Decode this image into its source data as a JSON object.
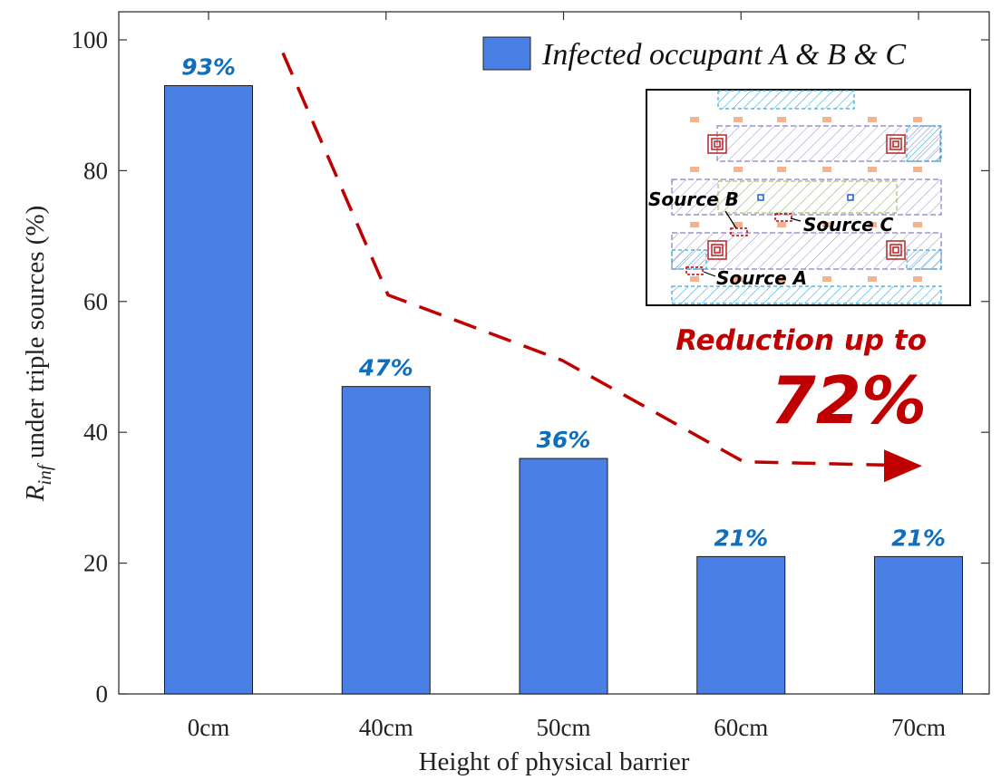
{
  "chart_data": {
    "type": "bar",
    "categories": [
      "0cm",
      "40cm",
      "50cm",
      "60cm",
      "70cm"
    ],
    "values": [
      93,
      47,
      36,
      21,
      21
    ],
    "data_labels": [
      "93%",
      "47%",
      "36%",
      "21%",
      "21%"
    ],
    "series": [
      {
        "name": "Infected occupant A & B & C",
        "values": [
          93,
          47,
          36,
          21,
          21
        ],
        "color": "#4a7fe6"
      }
    ],
    "xlabel": "Height of physical barrier",
    "ylabel_main": "R",
    "ylabel_sub": "inf",
    "ylabel_rest": " under triple sources (%)",
    "ylim": [
      0,
      100
    ],
    "yticks": [
      0,
      20,
      40,
      60,
      80,
      100
    ],
    "yticklabels": [
      "0",
      "20",
      "40",
      "60",
      "80",
      "100"
    ],
    "legend_position": "top-right",
    "grid": false
  },
  "annotations": {
    "reduction_line1": "Reduction up to",
    "reduction_value": "72%",
    "accent_color": "#c00000",
    "label_color": "#0f6fbf",
    "trend_points": [
      {
        "category": "0cm",
        "value": 98
      },
      {
        "category": "40cm",
        "value": 61
      },
      {
        "category": "50cm",
        "value": 51
      },
      {
        "category": "60cm",
        "value": 35.5
      },
      {
        "category": "70cm",
        "value": 35
      }
    ]
  },
  "inset": {
    "source_b": "Source B",
    "source_c": "Source C",
    "source_a": "Source A"
  }
}
